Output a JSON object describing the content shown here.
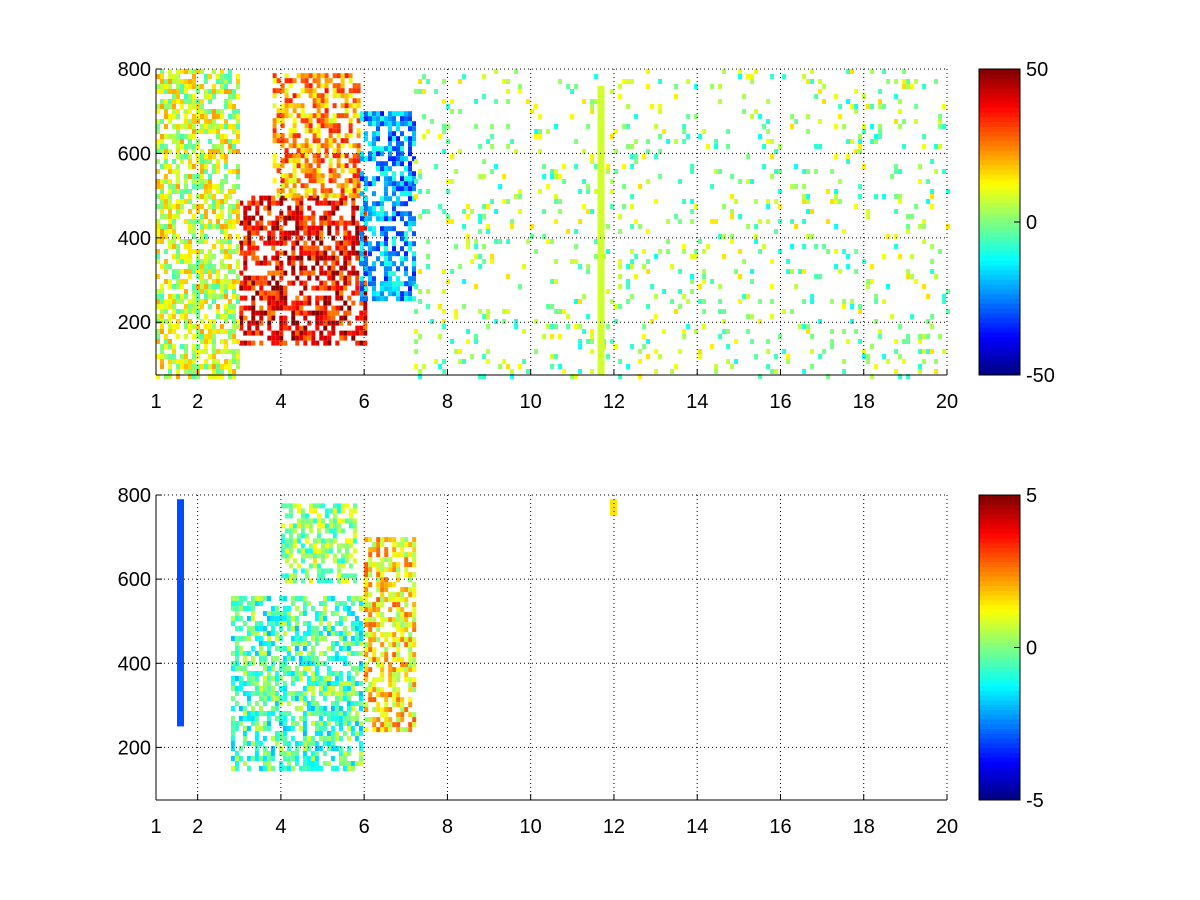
{
  "chart_data": [
    {
      "type": "heatmap",
      "title": "",
      "xlabel": "",
      "ylabel": "",
      "xlim": [
        1,
        20
      ],
      "ylim": [
        75,
        800
      ],
      "x_ticks": [
        "1",
        "2",
        "4",
        "6",
        "8",
        "10",
        "12",
        "14",
        "16",
        "18",
        "20"
      ],
      "y_ticks": [
        "200",
        "400",
        "600",
        "800"
      ],
      "x_tick_values": [
        1,
        2,
        4,
        6,
        8,
        10,
        12,
        14,
        16,
        18,
        20
      ],
      "y_tick_values": [
        200,
        400,
        600,
        800
      ],
      "grid": true,
      "colormap": "jet",
      "colorbar": {
        "min": -50,
        "max": 50,
        "ticks": [
          "50",
          "0",
          "-50"
        ],
        "tick_values": [
          50,
          0,
          -50
        ]
      },
      "regions": [
        {
          "x": [
            3.0,
            6.0
          ],
          "y": [
            150,
            500
          ],
          "value": 38
        },
        {
          "x": [
            3.8,
            5.9
          ],
          "y": [
            500,
            790
          ],
          "value": 22
        },
        {
          "x": [
            5.9,
            7.2
          ],
          "y": [
            260,
            700
          ],
          "value": -22
        },
        {
          "x": [
            1.0,
            3.0
          ],
          "y": [
            75,
            800
          ],
          "value": 8
        },
        {
          "x": [
            7.2,
            20.0
          ],
          "y": [
            75,
            800
          ],
          "value": 2
        }
      ],
      "features": [
        {
          "x": 11.7,
          "y": [
            75,
            760
          ],
          "value": 8
        }
      ]
    },
    {
      "type": "heatmap",
      "title": "",
      "xlabel": "",
      "ylabel": "",
      "xlim": [
        1,
        20
      ],
      "ylim": [
        75,
        800
      ],
      "x_ticks": [
        "1",
        "2",
        "4",
        "6",
        "8",
        "10",
        "12",
        "14",
        "16",
        "18",
        "20"
      ],
      "y_ticks": [
        "200",
        "400",
        "600",
        "800"
      ],
      "x_tick_values": [
        1,
        2,
        4,
        6,
        8,
        10,
        12,
        14,
        16,
        18,
        20
      ],
      "y_tick_values": [
        200,
        400,
        600,
        800
      ],
      "grid": true,
      "colormap": "jet",
      "colorbar": {
        "min": -5,
        "max": 5,
        "ticks": [
          "5",
          "0",
          "-5"
        ],
        "tick_values": [
          5,
          0,
          -5
        ]
      },
      "regions": [
        {
          "x": [
            2.8,
            5.9
          ],
          "y": [
            150,
            560
          ],
          "value": -0.5
        },
        {
          "x": [
            6.0,
            7.2
          ],
          "y": [
            240,
            700
          ],
          "value": 1.5
        },
        {
          "x": [
            4.0,
            5.8
          ],
          "y": [
            600,
            780
          ],
          "value": 0.2
        }
      ],
      "features": [
        {
          "x": 1.6,
          "y": [
            250,
            790
          ],
          "value": -3
        },
        {
          "x": 12.0,
          "y": [
            750,
            790
          ],
          "value": 1.5
        }
      ]
    }
  ]
}
